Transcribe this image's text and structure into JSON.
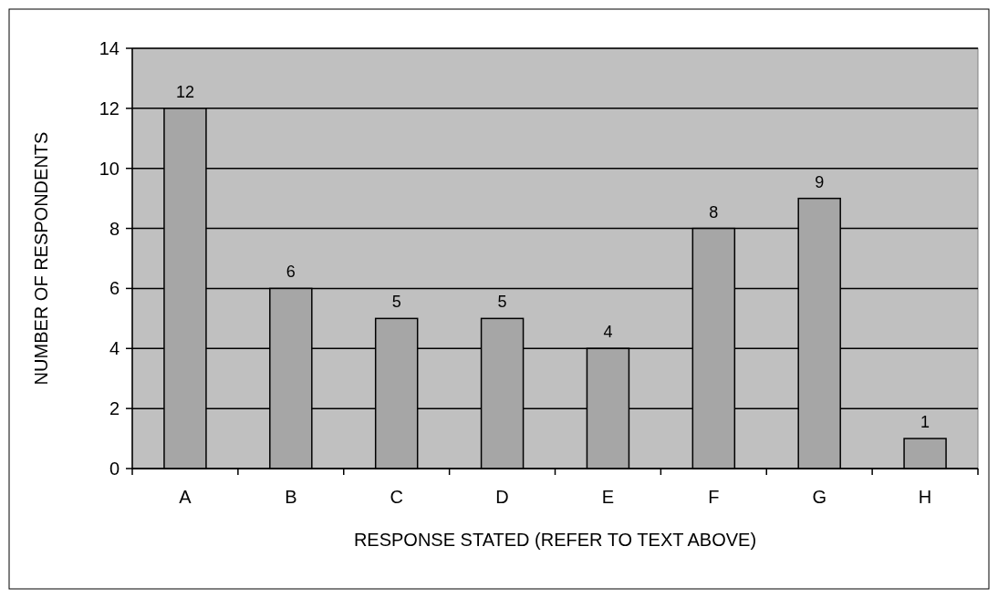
{
  "chart_data": {
    "type": "bar",
    "xlabel": "RESPONSE STATED (REFER TO TEXT ABOVE)",
    "ylabel": "NUMBER OF RESPONDENTS",
    "categories": [
      "A",
      "B",
      "C",
      "D",
      "E",
      "F",
      "G",
      "H"
    ],
    "values": [
      12,
      6,
      5,
      5,
      4,
      8,
      9,
      1
    ],
    "color": "#a6a6a6",
    "ylim": [
      0,
      14
    ],
    "yticks": [
      0,
      2,
      4,
      6,
      8,
      10,
      12,
      14
    ],
    "grid": "y",
    "data_labels": true
  }
}
